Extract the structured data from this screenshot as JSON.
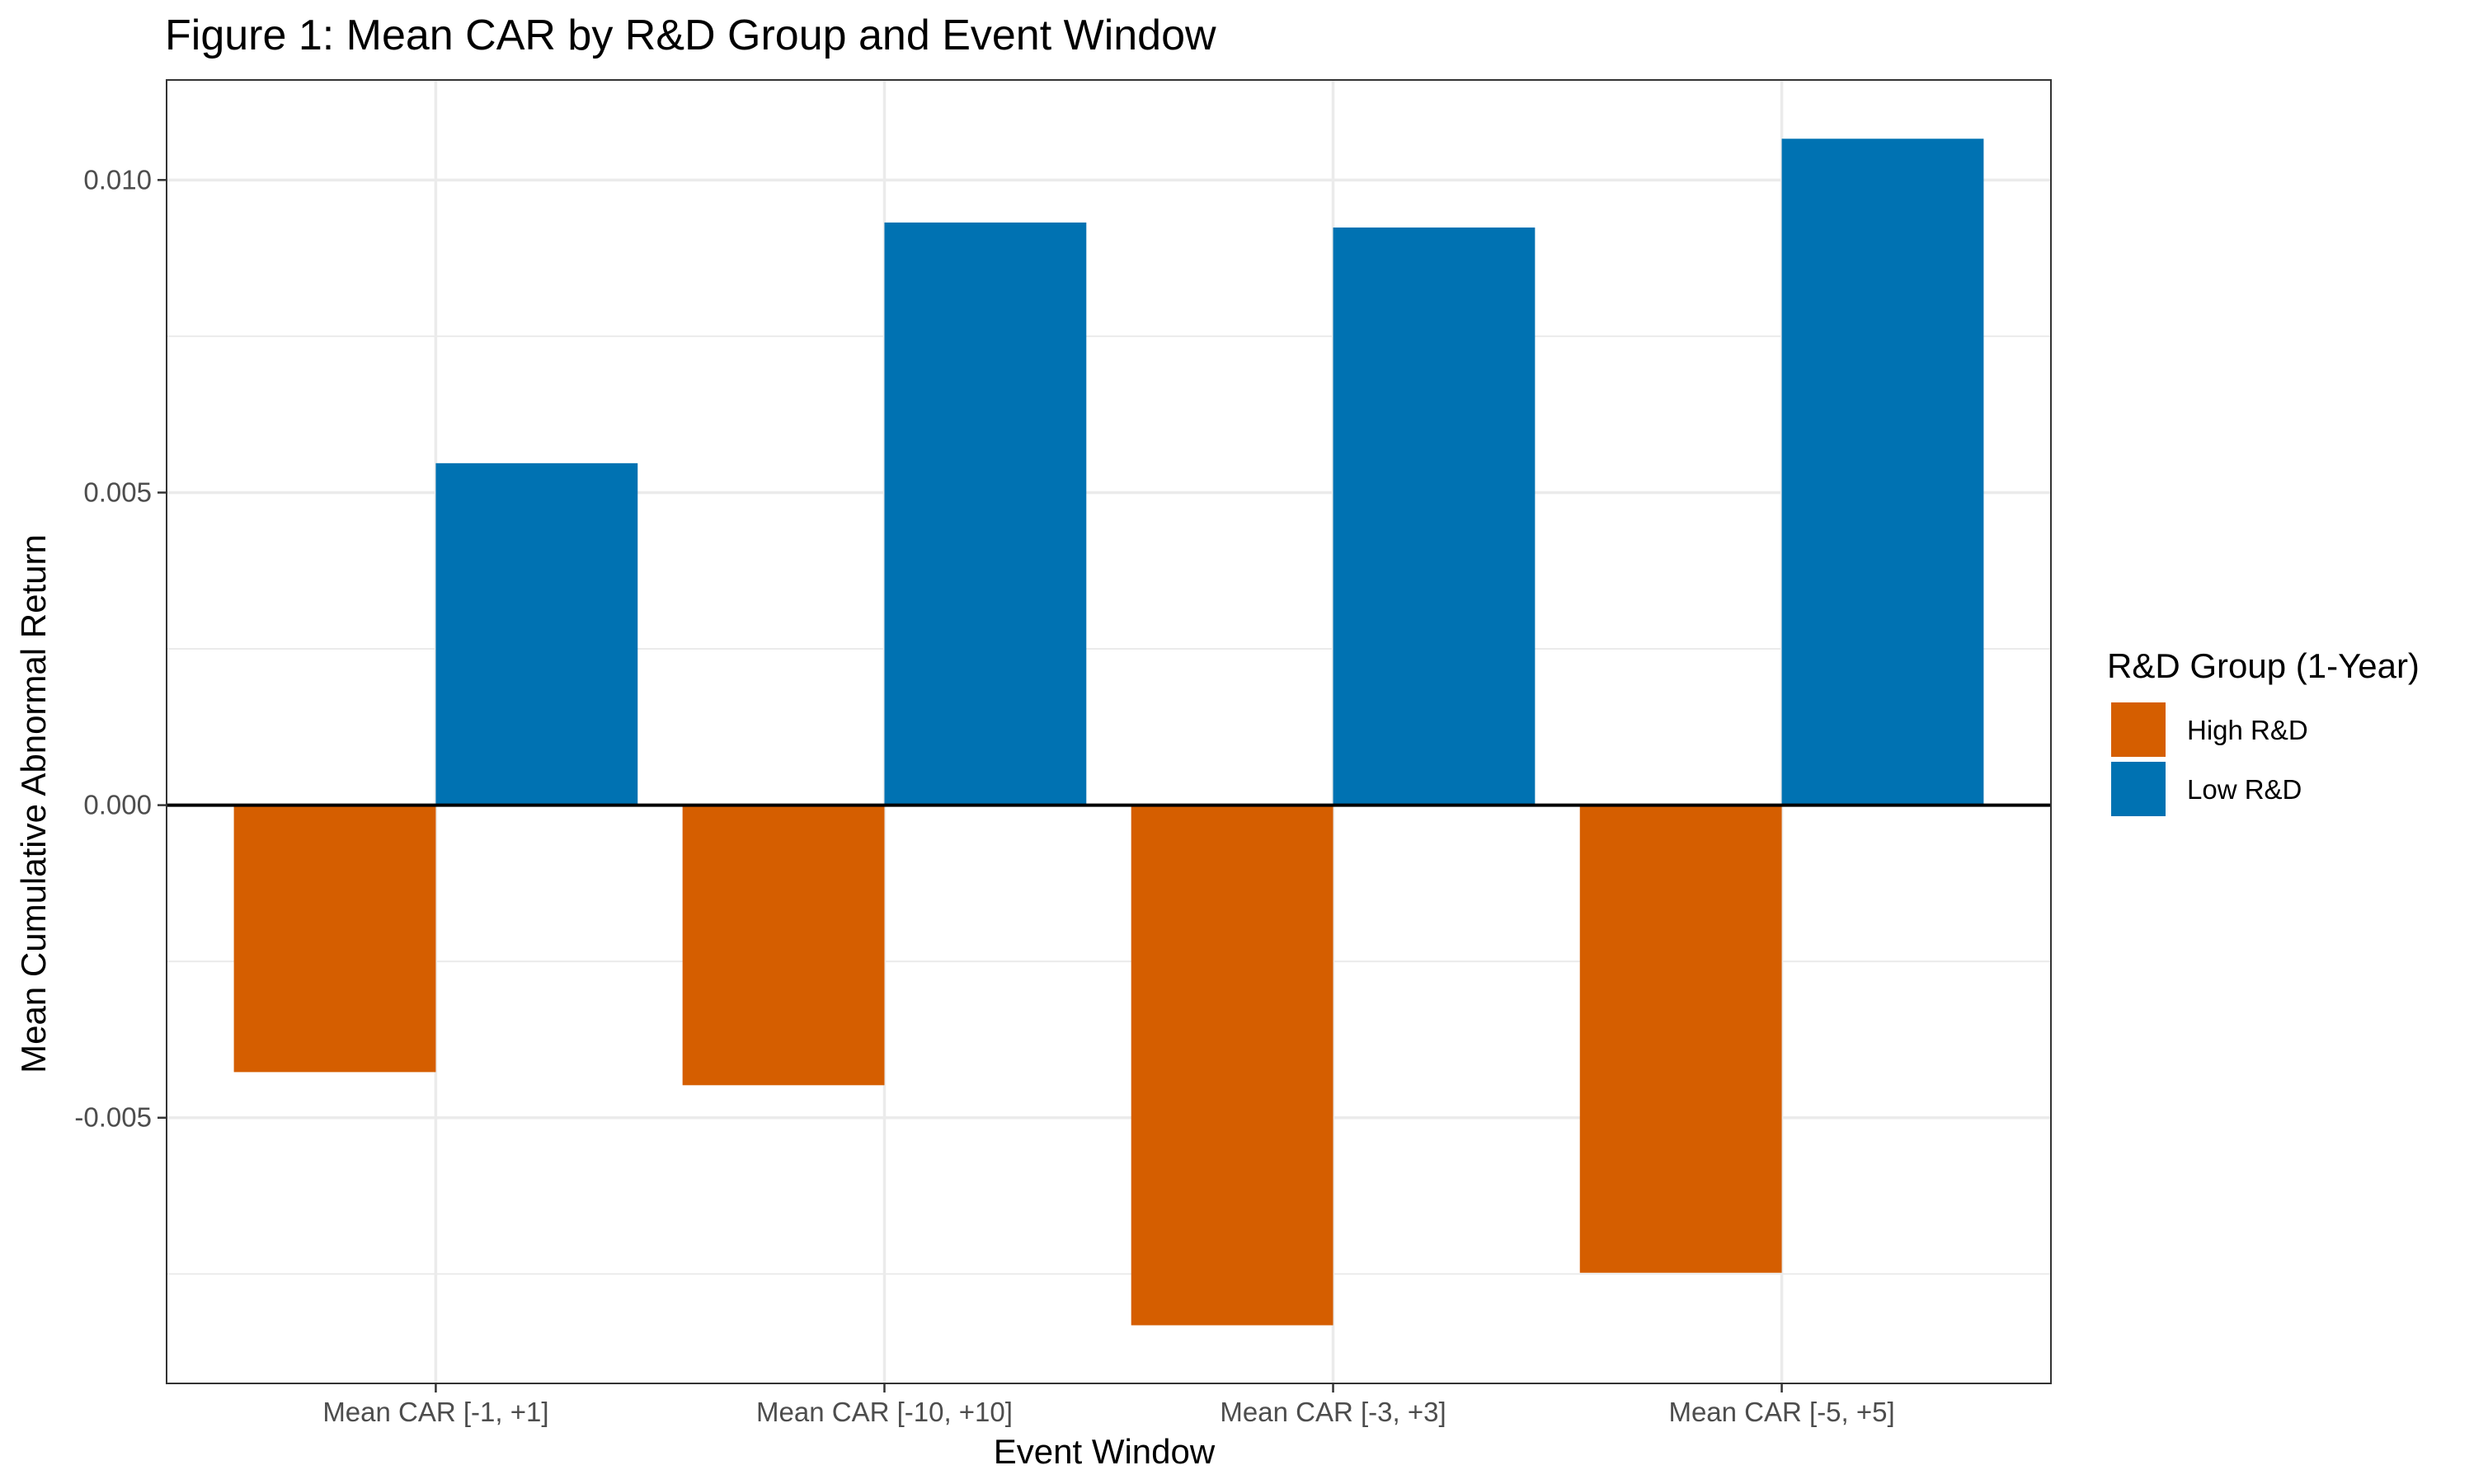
{
  "chart_data": {
    "type": "bar",
    "title": "Figure 1: Mean CAR by R&D Group and Event Window",
    "xlabel": "Event Window",
    "ylabel": "Mean Cumulative Abnormal Return",
    "categories": [
      "Mean CAR [-1, +1]",
      "Mean CAR [-10, +10]",
      "Mean CAR [-3, +3]",
      "Mean CAR [-5, +5]"
    ],
    "series": [
      {
        "name": "High R&D",
        "color": "#D55E00",
        "values": [
          -0.00427,
          -0.00448,
          -0.00832,
          -0.00748
        ]
      },
      {
        "name": "Low R&D",
        "color": "#0072B2",
        "values": [
          0.00547,
          0.00932,
          0.00924,
          0.01066
        ]
      }
    ],
    "ylim": [
      -0.00925,
      0.0116
    ],
    "yticks": [
      -0.005,
      0.0,
      0.005,
      0.01
    ],
    "ytick_labels": [
      "-0.005",
      "0.000",
      "0.005",
      "0.010"
    ],
    "grid": true,
    "zero_line": true,
    "legend": {
      "title": "R&D Group (1-Year)",
      "position": "right"
    }
  }
}
